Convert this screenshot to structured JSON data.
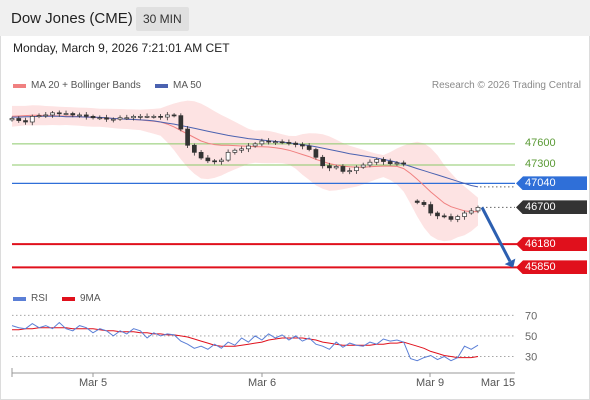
{
  "header": {
    "title": "Dow Jones (CME)",
    "interval": "30 MIN"
  },
  "datetime": "Monday, March 9, 2026 7:21:01 AM CET",
  "legend": {
    "ma20": "MA 20 + Bollinger Bands",
    "ma50": "MA 50",
    "copyright": "Research © 2026 Trading Central"
  },
  "rsi_legend": {
    "rsi": "RSI",
    "ma9": "9MA"
  },
  "colors": {
    "ma20": "#f08080",
    "bollinger_fill": "#fde3e3",
    "ma50": "#4b62b0",
    "resistance": "#8cc96a",
    "pivot": "#2f6fd8",
    "support": "#e0101c",
    "candle_up": "#ffffff",
    "candle_down": "#333333",
    "rsi": "#5b7fd6",
    "rsi_ma": "#e0101c",
    "arrow": "#2c5fb0",
    "last_price": "#333333"
  },
  "chart_data": [
    {
      "type": "line",
      "title": "Dow Jones (CME) 30 MIN",
      "x_ticks": [
        "Mar 5",
        "Mar 6",
        "Mar 9",
        "Mar 15"
      ],
      "y_range": [
        45600,
        48250
      ],
      "last_price": 46700,
      "levels": [
        {
          "value": 47600,
          "label": "47600",
          "kind": "resistance"
        },
        {
          "value": 47300,
          "label": "47300",
          "kind": "resistance"
        },
        {
          "value": 47040,
          "label": "47040",
          "kind": "pivot"
        },
        {
          "value": 46700,
          "label": "46700",
          "kind": "last"
        },
        {
          "value": 46180,
          "label": "46180",
          "kind": "support"
        },
        {
          "value": 45850,
          "label": "45850",
          "kind": "support"
        }
      ],
      "series": [
        {
          "name": "Price",
          "values": [
            47960,
            47930,
            47910,
            47990,
            48000,
            48010,
            48040,
            48030,
            48030,
            48010,
            48010,
            47990,
            47970,
            47970,
            47950,
            47950,
            47970,
            47970,
            47990,
            47990,
            47990,
            47990,
            47980,
            48010,
            48000,
            47810,
            47580,
            47480,
            47400,
            47360,
            47350,
            47370,
            47480,
            47510,
            47530,
            47570,
            47600,
            47640,
            47630,
            47630,
            47620,
            47610,
            47590,
            47570,
            47520,
            47410,
            47290,
            47260,
            47280,
            47210,
            47220,
            47270,
            47300,
            47340,
            47380,
            47350,
            47320,
            47330,
            47320,
            46790,
            46770,
            46740,
            46620,
            46580,
            46570,
            46530,
            46570,
            46620,
            46650,
            46700
          ]
        },
        {
          "name": "MA 20",
          "values": [
            47990,
            47995,
            48000,
            48005,
            48005,
            48000,
            48000,
            47995,
            47995,
            47990,
            47985,
            47980,
            47975,
            47970,
            47965,
            47960,
            47955,
            47950,
            47945,
            47940,
            47930,
            47920,
            47910,
            47880,
            47840,
            47790,
            47740,
            47690,
            47640,
            47610,
            47590,
            47580,
            47580,
            47575,
            47570,
            47565,
            47560,
            47560,
            47555,
            47545,
            47530,
            47510,
            47480,
            47450,
            47420,
            47380,
            47350,
            47320,
            47300,
            47285,
            47275,
            47270,
            47270,
            47275,
            47280,
            47285,
            47285,
            47280,
            47250,
            47180,
            47100,
            47010,
            46920,
            46840,
            46760,
            46710,
            46680,
            46650,
            46640,
            46640
          ]
        },
        {
          "name": "MA 50",
          "values": [
            47980,
            47980,
            47985,
            47985,
            47990,
            47990,
            47990,
            47990,
            47985,
            47985,
            47985,
            47980,
            47980,
            47975,
            47970,
            47960,
            47955,
            47950,
            47945,
            47940,
            47935,
            47925,
            47910,
            47895,
            47880,
            47860,
            47840,
            47820,
            47800,
            47780,
            47760,
            47740,
            47720,
            47705,
            47690,
            47675,
            47665,
            47655,
            47645,
            47635,
            47625,
            47615,
            47600,
            47590,
            47575,
            47560,
            47540,
            47520,
            47500,
            47480,
            47460,
            47445,
            47430,
            47415,
            47400,
            47380,
            47360,
            47340,
            47310,
            47280,
            47250,
            47220,
            47190,
            47160,
            47130,
            47100,
            47070,
            47040,
            47010,
            46990
          ]
        }
      ]
    },
    {
      "type": "line",
      "title": "RSI",
      "y_ticks": [
        70,
        50,
        30
      ],
      "y_range": [
        15,
        80
      ],
      "series": [
        {
          "name": "RSI",
          "values": [
            60,
            58,
            57,
            62,
            58,
            60,
            57,
            63,
            57,
            55,
            60,
            58,
            53,
            57,
            55,
            50,
            55,
            52,
            57,
            55,
            48,
            53,
            50,
            52,
            51,
            45,
            42,
            38,
            40,
            37,
            42,
            38,
            44,
            41,
            48,
            44,
            50,
            46,
            52,
            48,
            51,
            46,
            50,
            45,
            48,
            42,
            40,
            37,
            44,
            39,
            43,
            41,
            40,
            44,
            42,
            47,
            45,
            46,
            44,
            28,
            26,
            29,
            31,
            27,
            30,
            26,
            29,
            40,
            37,
            41
          ]
        },
        {
          "name": "9MA",
          "values": [
            56,
            56,
            57,
            57,
            58,
            58,
            58,
            58,
            58,
            57,
            57,
            57,
            57,
            56,
            55,
            55,
            54,
            54,
            54,
            53,
            53,
            52,
            52,
            51,
            51,
            50,
            49,
            47,
            45,
            43,
            41,
            40,
            40,
            40,
            41,
            42,
            43,
            44,
            46,
            47,
            48,
            48,
            48,
            48,
            47,
            46,
            44,
            43,
            42,
            41,
            41,
            41,
            41,
            41,
            42,
            42,
            43,
            43,
            44,
            42,
            40,
            38,
            35,
            33,
            31,
            30,
            29,
            29,
            29,
            30
          ]
        }
      ]
    }
  ]
}
